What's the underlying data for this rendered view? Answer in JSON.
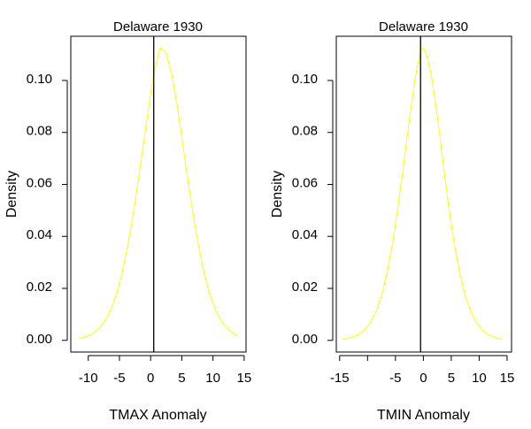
{
  "chart_data": [
    {
      "type": "line",
      "title": "Delaware 1930",
      "xlabel": "TMAX Anomaly",
      "ylabel": "Density",
      "xlim": [
        -12.8,
        15.3
      ],
      "ylim": [
        -0.0045,
        0.117
      ],
      "xticks": [
        -10,
        -5,
        0,
        5,
        10,
        15
      ],
      "xtick_labels": [
        "-10",
        "-5",
        "0",
        "5",
        "10",
        "15"
      ],
      "yticks": [
        0.0,
        0.02,
        0.04,
        0.06,
        0.08,
        0.1
      ],
      "ytick_labels": [
        "0.00",
        "0.02",
        "0.04",
        "0.06",
        "0.08",
        "0.10"
      ],
      "series": [
        {
          "name": "density",
          "color": "#ffff00",
          "x": [
            -11.5,
            -10.5,
            -9.5,
            -8.5,
            -7.5,
            -6.5,
            -5.5,
            -4.5,
            -3.5,
            -2.5,
            -1.5,
            -0.5,
            0.5,
            0.8,
            1.5,
            2.5,
            3.5,
            4.5,
            5.5,
            6.5,
            7.5,
            8.5,
            9.5,
            10.5,
            11.5,
            12.5,
            13.5,
            14.0
          ],
          "y": [
            0.0006,
            0.0012,
            0.0022,
            0.004,
            0.0068,
            0.011,
            0.0175,
            0.0265,
            0.0385,
            0.053,
            0.0695,
            0.0865,
            0.1025,
            0.1055,
            0.1125,
            0.1105,
            0.101,
            0.0865,
            0.0695,
            0.053,
            0.0385,
            0.0265,
            0.0175,
            0.011,
            0.0068,
            0.004,
            0.0022,
            0.0016
          ]
        }
      ],
      "vline": {
        "x": 0.5,
        "color": "#000000"
      }
    },
    {
      "type": "line",
      "title": "Delaware 1930",
      "xlabel": "TMIN Anomaly",
      "ylabel": "Density",
      "xlim": [
        -15.6,
        15.8
      ],
      "ylim": [
        -0.0045,
        0.117
      ],
      "xticks": [
        -15,
        -10,
        -5,
        0,
        5,
        10,
        15
      ],
      "xtick_labels": [
        "-15",
        "",
        "-5",
        "0",
        "5",
        "10",
        "15"
      ],
      "yticks": [
        0.0,
        0.02,
        0.04,
        0.06,
        0.08,
        0.1
      ],
      "ytick_labels": [
        "0.00",
        "0.02",
        "0.04",
        "0.06",
        "0.08",
        "0.10"
      ],
      "series": [
        {
          "name": "density",
          "color": "#ffff00",
          "x": [
            -14.5,
            -13.5,
            -12.5,
            -11.5,
            -10.5,
            -9.5,
            -8.5,
            -7.5,
            -6.5,
            -5.5,
            -4.5,
            -3.5,
            -2.5,
            -1.5,
            -0.5,
            0.0,
            0.5,
            1.5,
            2.5,
            3.5,
            4.5,
            5.5,
            6.5,
            7.5,
            8.5,
            9.5,
            10.5,
            11.5,
            12.5,
            13.5,
            14.0
          ],
          "y": [
            0.0004,
            0.0007,
            0.0013,
            0.0023,
            0.004,
            0.0068,
            0.011,
            0.017,
            0.026,
            0.0375,
            0.052,
            0.068,
            0.085,
            0.1005,
            0.1115,
            0.1125,
            0.1105,
            0.101,
            0.0865,
            0.069,
            0.052,
            0.0375,
            0.026,
            0.017,
            0.011,
            0.0068,
            0.004,
            0.0023,
            0.0013,
            0.0007,
            0.0005
          ]
        }
      ],
      "vline": {
        "x": -0.5,
        "color": "#000000"
      }
    }
  ]
}
